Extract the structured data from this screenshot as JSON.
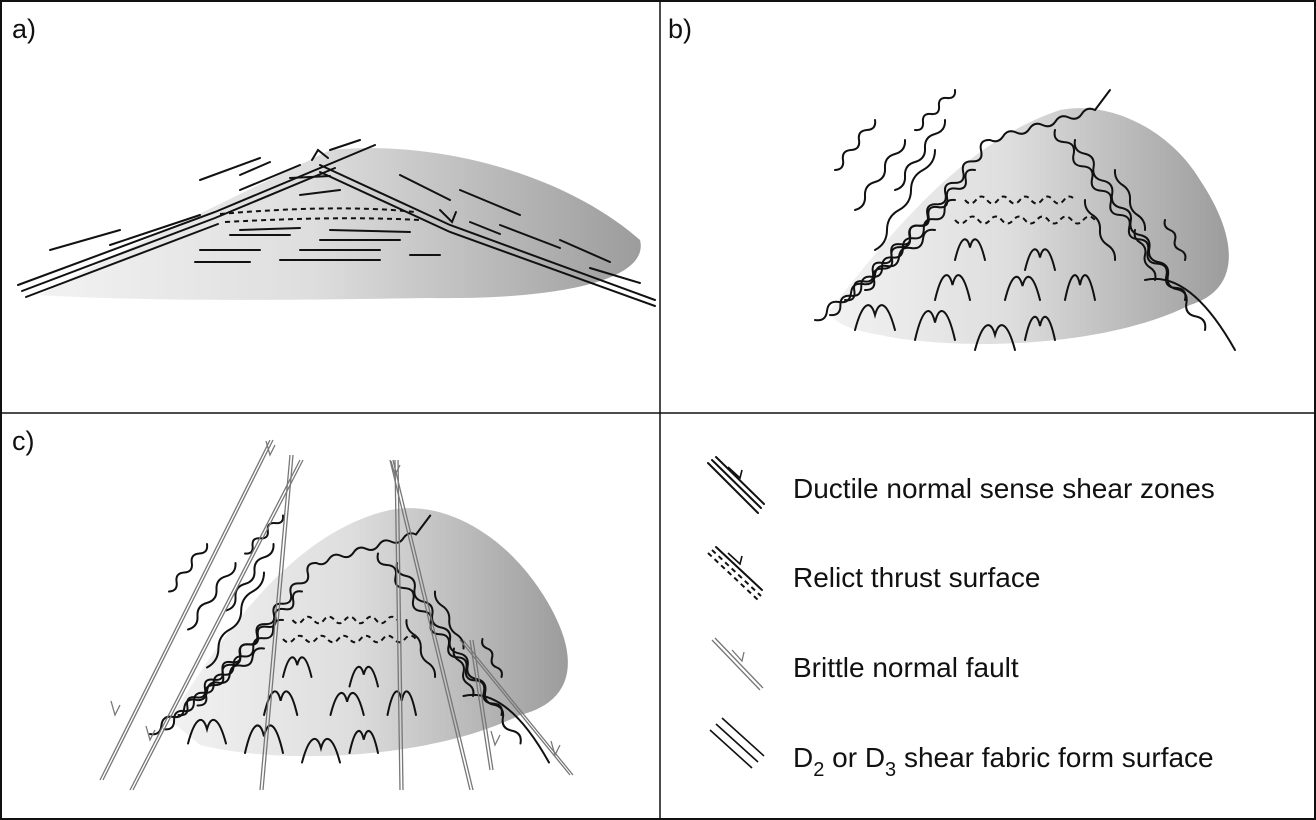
{
  "panels": [
    {
      "label": "a)"
    },
    {
      "label": "b)"
    },
    {
      "label": "c)"
    }
  ],
  "legend": {
    "items": [
      {
        "text": "Ductile normal sense shear zones"
      },
      {
        "text": "Relict thrust surface"
      },
      {
        "text": "Brittle normal fault"
      },
      {
        "text_parts": [
          "D",
          "2",
          " or D",
          "3",
          " shear fabric form surface"
        ]
      }
    ]
  }
}
